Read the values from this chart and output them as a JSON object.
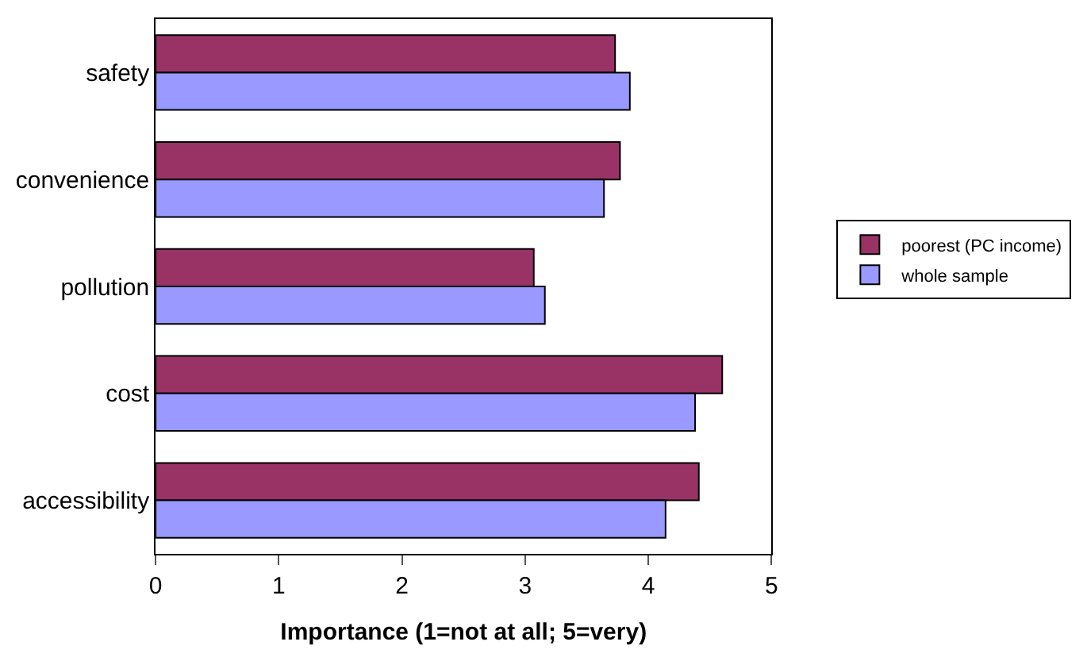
{
  "chart_data": {
    "type": "bar",
    "orientation": "horizontal",
    "xlabel": "Importance (1=not at all; 5=very)",
    "categories": [
      "safety",
      "convenience",
      "pollution",
      "cost",
      "accessibility"
    ],
    "series": [
      {
        "name": "poorest (PC income)",
        "color": "#993366",
        "values": [
          3.73,
          3.77,
          3.07,
          4.6,
          4.41
        ]
      },
      {
        "name": "whole sample",
        "color": "#9999ff",
        "values": [
          3.85,
          3.64,
          3.16,
          4.38,
          4.14
        ]
      }
    ],
    "xlim": [
      0,
      5
    ],
    "xticks": [
      0,
      1,
      2,
      3,
      4,
      5
    ],
    "grid": false,
    "legend": "right"
  }
}
